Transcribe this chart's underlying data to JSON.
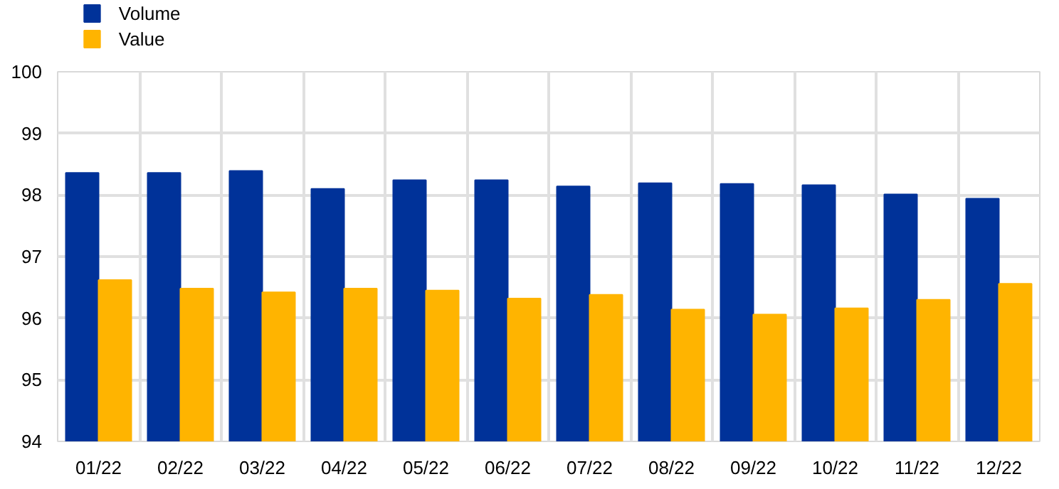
{
  "chart_data": {
    "type": "bar",
    "categories": [
      "01/22",
      "02/22",
      "03/22",
      "04/22",
      "05/22",
      "06/22",
      "07/22",
      "08/22",
      "09/22",
      "10/22",
      "11/22",
      "12/22"
    ],
    "series": [
      {
        "name": "Volume",
        "color": "#003299",
        "values": [
          98.36,
          98.36,
          98.39,
          98.1,
          98.24,
          98.24,
          98.14,
          98.19,
          98.18,
          98.16,
          98.01,
          97.94
        ]
      },
      {
        "name": "Value",
        "color": "#ffb400",
        "values": [
          96.62,
          96.48,
          96.42,
          96.48,
          96.45,
          96.32,
          96.38,
          96.14,
          96.06,
          96.16,
          96.3,
          96.56
        ]
      }
    ],
    "ylim": [
      94,
      100
    ],
    "yticks": [
      94,
      95,
      96,
      97,
      98,
      99,
      100
    ],
    "grid": true,
    "legend": "top left"
  }
}
